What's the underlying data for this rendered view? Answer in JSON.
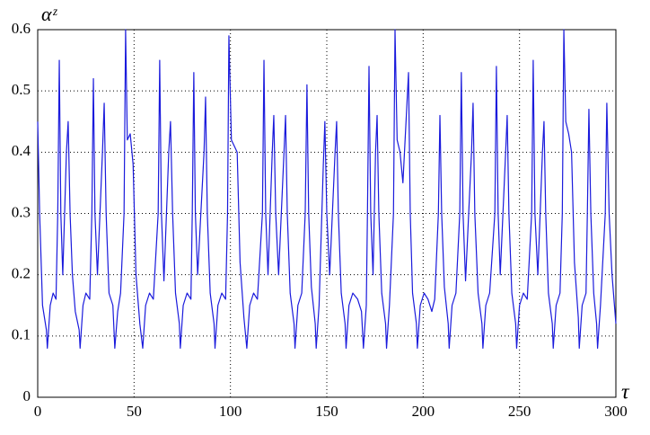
{
  "chart_data": {
    "type": "line",
    "ylabel": "αᶻ",
    "xlabel": "τ",
    "xlim": [
      0,
      300
    ],
    "ylim": [
      0,
      0.6
    ],
    "xticks": [
      0,
      50,
      100,
      150,
      200,
      250,
      300
    ],
    "yticks": [
      0,
      0.1,
      0.2,
      0.3,
      0.4,
      0.5,
      0.6
    ],
    "grid": true,
    "series": [
      {
        "color": "#1a1adc",
        "x": [
          0,
          1,
          2.5,
          4.5,
          5,
          6.5,
          8,
          9.5,
          10.4,
          11.2,
          12,
          13,
          14.9,
          15.8,
          16.8,
          18,
          19.5,
          21.5,
          22,
          23.5,
          25,
          27,
          28.1,
          28.9,
          29.7,
          31,
          33.6,
          34.5,
          35.5,
          37,
          39,
          40,
          41.5,
          43,
          44.8,
          45.6,
          46.5,
          48,
          49.5,
          51,
          53,
          54.5,
          56,
          58,
          60,
          62.5,
          63.3,
          64.2,
          65.5,
          68,
          68.9,
          70,
          71.5,
          73.5,
          74,
          75.5,
          77.5,
          79.5,
          80.2,
          81,
          81.8,
          83,
          86.3,
          87.1,
          88,
          89.5,
          91.5,
          92,
          93.5,
          95.5,
          97.5,
          98.5,
          99.2,
          100.5,
          102,
          103.5,
          105,
          107,
          108.5,
          110,
          112,
          114,
          116.6,
          117.4,
          118.3,
          119.5,
          121.7,
          122.5,
          123.5,
          125,
          127.8,
          128.6,
          129.5,
          131,
          133,
          133.5,
          135,
          137,
          138.8,
          139.7,
          140.6,
          142,
          144,
          144.5,
          146,
          148.2,
          149,
          150,
          151.5,
          154.3,
          155.1,
          156,
          157.5,
          159.5,
          160,
          161.5,
          163.5,
          166,
          168,
          169,
          170.5,
          171.1,
          171.9,
          172.8,
          174,
          175.3,
          176.1,
          177,
          178.5,
          180.5,
          181,
          182.5,
          184.6,
          185.4,
          186.5,
          188,
          189.5,
          191.6,
          192.4,
          193.3,
          194.5,
          196.5,
          197,
          198.5,
          200.5,
          202.5,
          204.5,
          206,
          207.9,
          208.7,
          209.6,
          211,
          213,
          213.5,
          215,
          217,
          219,
          219.8,
          220.7,
          222,
          225.1,
          225.9,
          226.8,
          228.5,
          230.5,
          231,
          232.5,
          234.5,
          237.2,
          238,
          238.9,
          240,
          242.8,
          243.6,
          244.5,
          246,
          248,
          248.5,
          250,
          252,
          254,
          256.3,
          257.1,
          258,
          259.5,
          261.9,
          262.7,
          263.6,
          265,
          267,
          267.5,
          269,
          271,
          272.2,
          273,
          274,
          275.5,
          277,
          278.5,
          280.5,
          281,
          282.5,
          284.5,
          285.2,
          286,
          287,
          288.5,
          290,
          290.5,
          292,
          294.5,
          295.3,
          296.5,
          298,
          300
        ],
        "values": [
          0.45,
          0.3,
          0.15,
          0.11,
          0.08,
          0.15,
          0.17,
          0.16,
          0.3,
          0.55,
          0.3,
          0.2,
          0.4,
          0.45,
          0.3,
          0.2,
          0.14,
          0.11,
          0.08,
          0.15,
          0.17,
          0.16,
          0.3,
          0.52,
          0.3,
          0.2,
          0.4,
          0.48,
          0.3,
          0.17,
          0.15,
          0.08,
          0.14,
          0.17,
          0.3,
          0.6,
          0.42,
          0.43,
          0.38,
          0.2,
          0.12,
          0.08,
          0.15,
          0.17,
          0.16,
          0.3,
          0.55,
          0.3,
          0.19,
          0.4,
          0.45,
          0.3,
          0.17,
          0.12,
          0.08,
          0.15,
          0.17,
          0.16,
          0.3,
          0.53,
          0.3,
          0.2,
          0.4,
          0.49,
          0.3,
          0.17,
          0.12,
          0.08,
          0.15,
          0.17,
          0.16,
          0.3,
          0.59,
          0.42,
          0.41,
          0.4,
          0.22,
          0.13,
          0.08,
          0.15,
          0.17,
          0.16,
          0.3,
          0.55,
          0.3,
          0.2,
          0.4,
          0.46,
          0.3,
          0.2,
          0.4,
          0.46,
          0.3,
          0.17,
          0.12,
          0.08,
          0.15,
          0.17,
          0.3,
          0.51,
          0.3,
          0.18,
          0.12,
          0.08,
          0.15,
          0.38,
          0.45,
          0.3,
          0.2,
          0.4,
          0.45,
          0.3,
          0.17,
          0.12,
          0.08,
          0.15,
          0.17,
          0.16,
          0.14,
          0.08,
          0.15,
          0.3,
          0.54,
          0.3,
          0.2,
          0.4,
          0.46,
          0.3,
          0.17,
          0.12,
          0.08,
          0.15,
          0.3,
          0.6,
          0.42,
          0.4,
          0.35,
          0.48,
          0.53,
          0.3,
          0.17,
          0.12,
          0.08,
          0.15,
          0.17,
          0.16,
          0.14,
          0.16,
          0.3,
          0.46,
          0.3,
          0.18,
          0.12,
          0.08,
          0.15,
          0.17,
          0.3,
          0.53,
          0.3,
          0.19,
          0.4,
          0.48,
          0.3,
          0.17,
          0.12,
          0.08,
          0.15,
          0.17,
          0.3,
          0.54,
          0.3,
          0.2,
          0.4,
          0.46,
          0.3,
          0.17,
          0.12,
          0.08,
          0.15,
          0.17,
          0.16,
          0.3,
          0.55,
          0.3,
          0.2,
          0.4,
          0.45,
          0.3,
          0.17,
          0.12,
          0.08,
          0.15,
          0.17,
          0.3,
          0.6,
          0.45,
          0.43,
          0.4,
          0.22,
          0.13,
          0.08,
          0.15,
          0.17,
          0.3,
          0.47,
          0.3,
          0.17,
          0.12,
          0.08,
          0.15,
          0.3,
          0.48,
          0.3,
          0.2,
          0.12
        ]
      }
    ]
  }
}
